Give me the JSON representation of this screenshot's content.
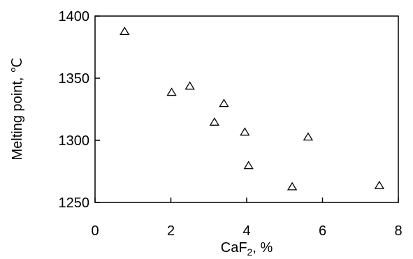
{
  "chart_data": {
    "type": "scatter",
    "title": "",
    "xlabel": {
      "main": "CaF",
      "sub": "2",
      "rest": ", %"
    },
    "ylabel": "Melting point, ℃",
    "xlim": [
      0,
      8
    ],
    "ylim": [
      1250,
      1400
    ],
    "xticks": [
      0,
      2,
      4,
      6,
      8
    ],
    "yticks": [
      1250,
      1300,
      1350,
      1400
    ],
    "grid": false,
    "marker": "open-triangle",
    "series": [
      {
        "points": [
          {
            "x": 0.78,
            "y": 1388
          },
          {
            "x": 2.02,
            "y": 1339
          },
          {
            "x": 2.5,
            "y": 1344
          },
          {
            "x": 3.15,
            "y": 1315
          },
          {
            "x": 3.4,
            "y": 1330
          },
          {
            "x": 3.95,
            "y": 1307
          },
          {
            "x": 4.05,
            "y": 1280
          },
          {
            "x": 5.2,
            "y": 1263
          },
          {
            "x": 5.62,
            "y": 1303
          },
          {
            "x": 7.5,
            "y": 1264
          }
        ]
      }
    ]
  }
}
